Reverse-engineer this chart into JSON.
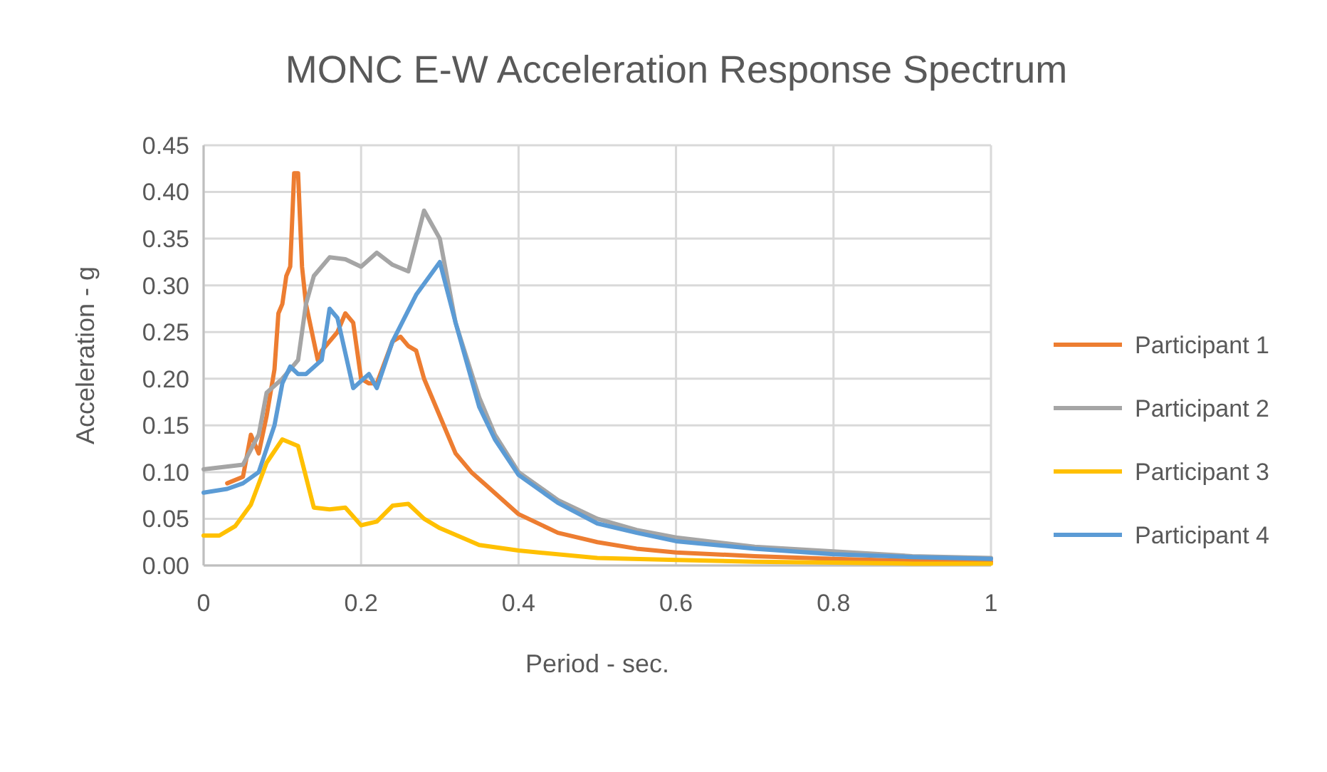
{
  "chart_data": {
    "type": "line",
    "title": "MONC E-W Acceleration Response Spectrum",
    "xlabel": "Period - sec.",
    "ylabel": "Acceleration - g",
    "xlim": [
      0,
      1
    ],
    "xticks": [
      0,
      0.2,
      0.4,
      0.6,
      0.8,
      1
    ],
    "ylim": [
      0,
      0.45
    ],
    "yticks": [
      {
        "value": 0,
        "label": "0.00"
      },
      {
        "value": 0.05,
        "label": "0.05"
      },
      {
        "value": 0.1,
        "label": "0.10"
      },
      {
        "value": 0.15,
        "label": "0.15"
      },
      {
        "value": 0.2,
        "label": "0.20"
      },
      {
        "value": 0.25,
        "label": "0.25"
      },
      {
        "value": 0.3,
        "label": "0.30"
      },
      {
        "value": 0.35,
        "label": "0.35"
      },
      {
        "value": 0.4,
        "label": "0.40"
      },
      {
        "value": 0.45,
        "label": "0.45"
      }
    ],
    "grid": true,
    "legend": "right",
    "marker": "none",
    "line_style": "solid",
    "series": [
      {
        "name": "Participant 1",
        "color": "#ed7d31",
        "x": [
          0.03,
          0.05,
          0.06,
          0.07,
          0.08,
          0.09,
          0.095,
          0.1,
          0.105,
          0.11,
          0.115,
          0.12,
          0.125,
          0.13,
          0.14,
          0.145,
          0.15,
          0.16,
          0.17,
          0.18,
          0.19,
          0.2,
          0.21,
          0.22,
          0.24,
          0.25,
          0.26,
          0.27,
          0.28,
          0.3,
          0.32,
          0.34,
          0.36,
          0.4,
          0.45,
          0.5,
          0.55,
          0.6,
          0.7,
          0.8,
          0.9,
          1
        ],
        "values": [
          0.088,
          0.095,
          0.14,
          0.12,
          0.16,
          0.21,
          0.27,
          0.28,
          0.31,
          0.32,
          0.42,
          0.42,
          0.32,
          0.28,
          0.24,
          0.22,
          0.23,
          0.24,
          0.25,
          0.27,
          0.26,
          0.2,
          0.195,
          0.195,
          0.24,
          0.245,
          0.235,
          0.23,
          0.2,
          0.16,
          0.12,
          0.1,
          0.085,
          0.055,
          0.035,
          0.025,
          0.018,
          0.014,
          0.01,
          0.007,
          0.005,
          0.004
        ]
      },
      {
        "name": "Participant 2",
        "color": "#a5a5a5",
        "x": [
          0,
          0.05,
          0.07,
          0.08,
          0.1,
          0.12,
          0.13,
          0.14,
          0.16,
          0.18,
          0.2,
          0.22,
          0.24,
          0.26,
          0.28,
          0.3,
          0.32,
          0.35,
          0.37,
          0.4,
          0.45,
          0.5,
          0.55,
          0.6,
          0.7,
          0.8,
          0.9,
          1
        ],
        "values": [
          0.103,
          0.108,
          0.14,
          0.185,
          0.2,
          0.22,
          0.28,
          0.31,
          0.33,
          0.328,
          0.32,
          0.335,
          0.322,
          0.315,
          0.38,
          0.35,
          0.26,
          0.18,
          0.14,
          0.1,
          0.07,
          0.05,
          0.038,
          0.03,
          0.02,
          0.015,
          0.01,
          0.008
        ]
      },
      {
        "name": "Participant 3",
        "color": "#ffc000",
        "x": [
          0,
          0.02,
          0.04,
          0.06,
          0.08,
          0.1,
          0.12,
          0.14,
          0.16,
          0.18,
          0.2,
          0.22,
          0.24,
          0.26,
          0.28,
          0.3,
          0.35,
          0.4,
          0.5,
          0.6,
          0.7,
          0.8,
          0.9,
          1
        ],
        "values": [
          0.032,
          0.032,
          0.042,
          0.065,
          0.11,
          0.135,
          0.128,
          0.062,
          0.06,
          0.062,
          0.043,
          0.047,
          0.064,
          0.066,
          0.05,
          0.04,
          0.022,
          0.016,
          0.008,
          0.006,
          0.004,
          0.003,
          0.002,
          0.002
        ]
      },
      {
        "name": "Participant 4",
        "color": "#5b9bd5",
        "x": [
          0,
          0.03,
          0.05,
          0.07,
          0.09,
          0.1,
          0.11,
          0.12,
          0.13,
          0.15,
          0.16,
          0.17,
          0.19,
          0.21,
          0.22,
          0.24,
          0.27,
          0.3,
          0.32,
          0.35,
          0.37,
          0.4,
          0.45,
          0.5,
          0.55,
          0.6,
          0.7,
          0.8,
          0.9,
          1
        ],
        "values": [
          0.078,
          0.082,
          0.088,
          0.1,
          0.15,
          0.195,
          0.213,
          0.205,
          0.205,
          0.22,
          0.275,
          0.265,
          0.19,
          0.205,
          0.19,
          0.24,
          0.29,
          0.325,
          0.26,
          0.17,
          0.135,
          0.097,
          0.067,
          0.045,
          0.035,
          0.026,
          0.018,
          0.012,
          0.009,
          0.007
        ]
      }
    ]
  }
}
